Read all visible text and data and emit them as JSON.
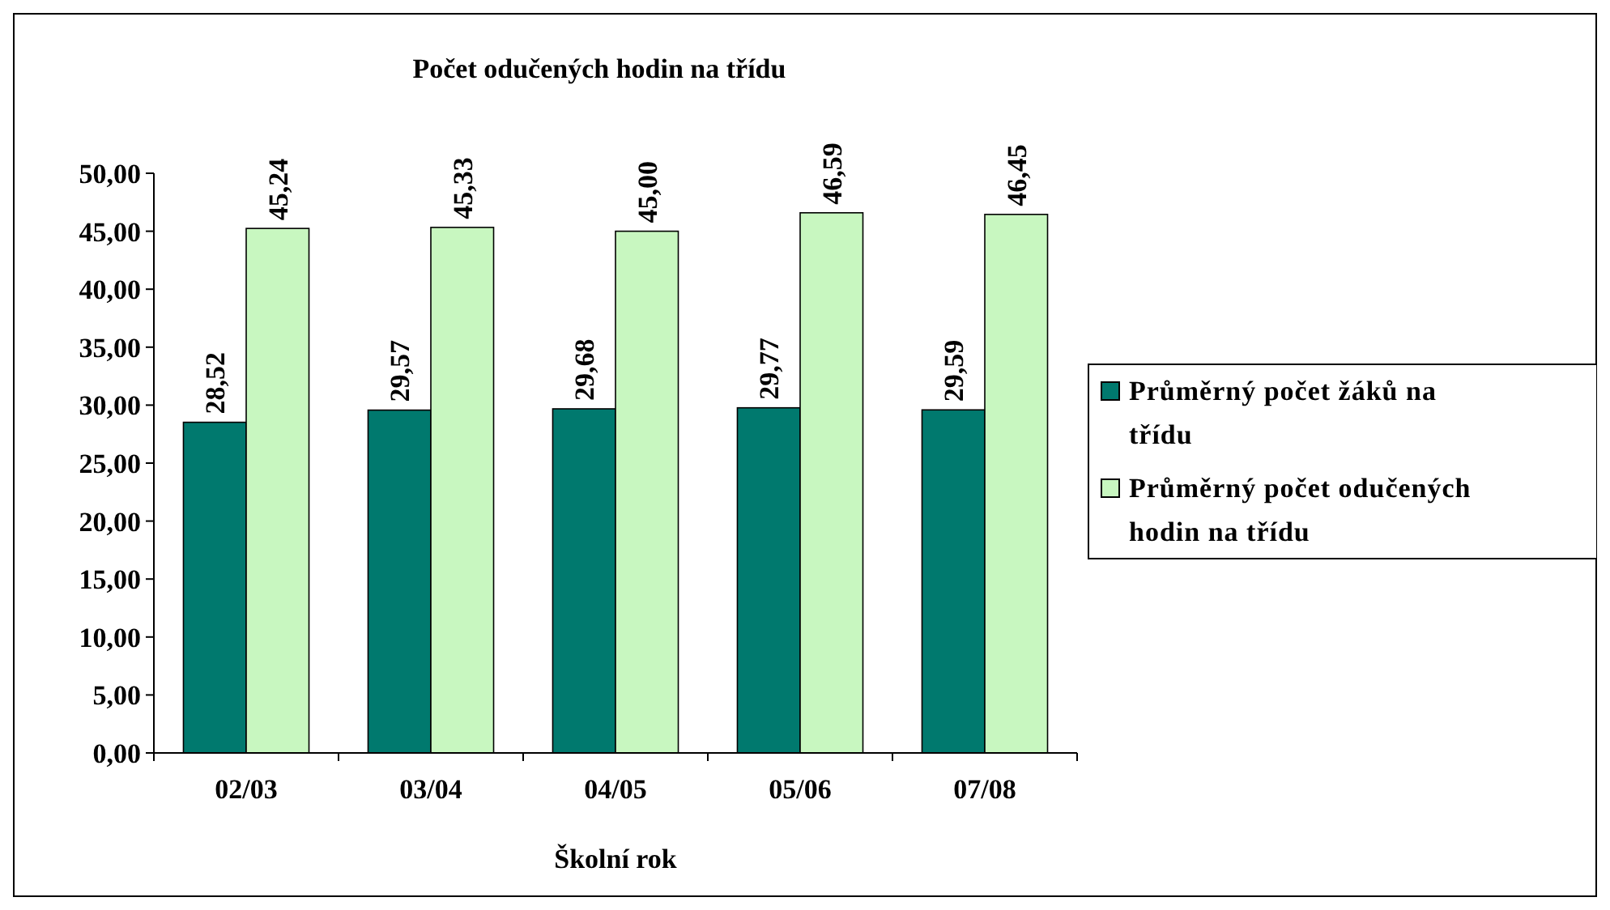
{
  "chart_data": {
    "type": "bar",
    "title": "Počet odučených hodin na třídu",
    "xlabel": "Školní rok",
    "categories": [
      "02/03",
      "03/04",
      "04/05",
      "05/06",
      "07/08"
    ],
    "series": [
      {
        "name": "Průměrný počet žáků na třídu",
        "color": "#00796e",
        "values": [
          28.52,
          29.57,
          29.68,
          29.77,
          29.59
        ],
        "value_labels": [
          "28,52",
          "29,57",
          "29,68",
          "29,77",
          "29,59"
        ]
      },
      {
        "name": "Průměrný počet odučených hodin na třídu",
        "color": "#c8f7c0",
        "values": [
          45.24,
          45.33,
          45.0,
          46.59,
          46.45
        ],
        "value_labels": [
          "45,24",
          "45,33",
          "45,00",
          "46,59",
          "46,45"
        ]
      }
    ],
    "ylim": [
      0,
      50
    ],
    "yticks": [
      {
        "value": 0,
        "label": "0,00"
      },
      {
        "value": 5,
        "label": "5,00"
      },
      {
        "value": 10,
        "label": "10,00"
      },
      {
        "value": 15,
        "label": "15,00"
      },
      {
        "value": 20,
        "label": "20,00"
      },
      {
        "value": 25,
        "label": "25,00"
      },
      {
        "value": 30,
        "label": "30,00"
      },
      {
        "value": 35,
        "label": "35,00"
      },
      {
        "value": 40,
        "label": "40,00"
      },
      {
        "value": 45,
        "label": "45,00"
      },
      {
        "value": 50,
        "label": "50,00"
      }
    ],
    "legend": "right"
  }
}
